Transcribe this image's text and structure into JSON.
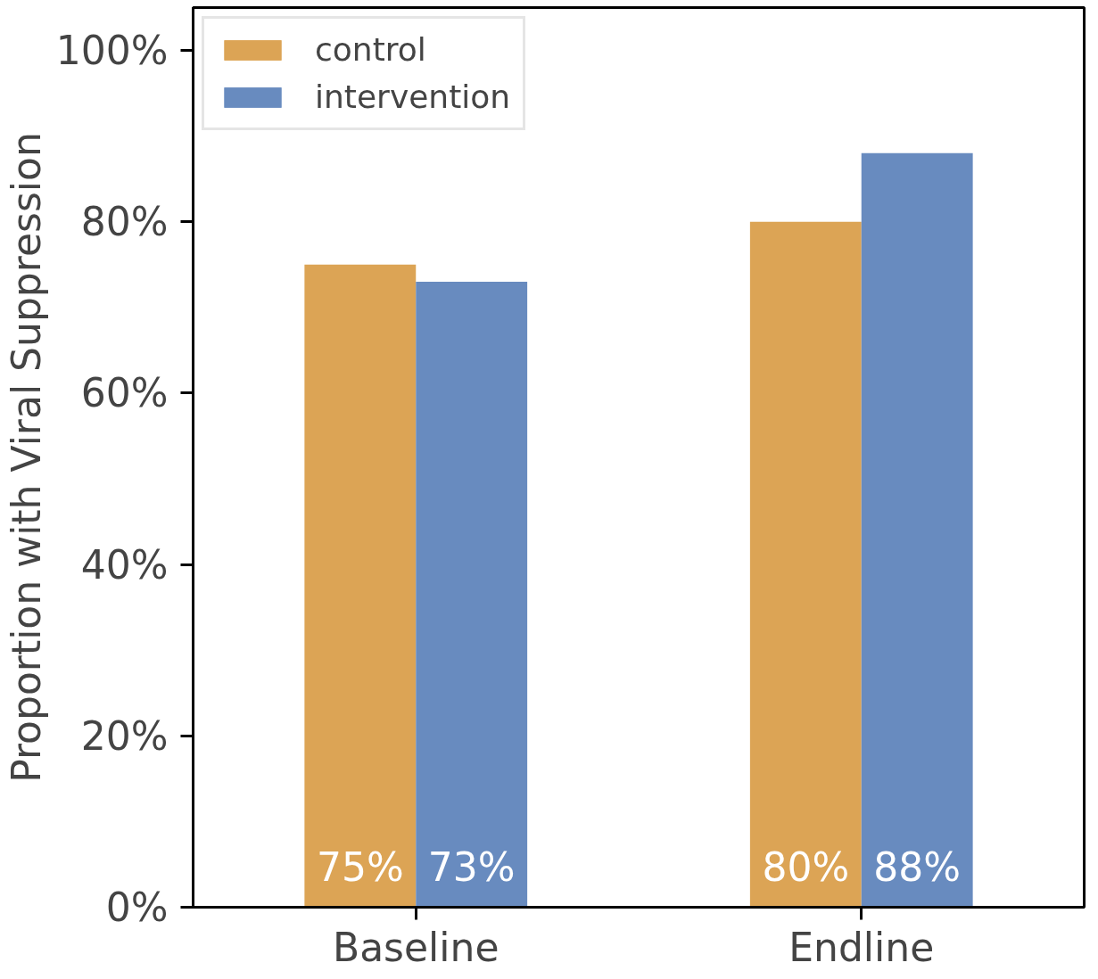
{
  "chart_data": {
    "type": "bar",
    "ylabel": "Proportion with Viral Suppression",
    "categories": [
      "Baseline",
      "Endline"
    ],
    "series": [
      {
        "name": "control",
        "color": "#dca455",
        "values": [
          75,
          80
        ]
      },
      {
        "name": "intervention",
        "color": "#688bbf",
        "values": [
          73,
          88
        ]
      }
    ],
    "ylim": [
      0,
      105
    ],
    "yticks": [
      {
        "value": 0,
        "label": "0%"
      },
      {
        "value": 20,
        "label": "20%"
      },
      {
        "value": 40,
        "label": "40%"
      },
      {
        "value": 60,
        "label": "60%"
      },
      {
        "value": 80,
        "label": "80%"
      },
      {
        "value": 100,
        "label": "100%"
      }
    ],
    "value_labels": [
      [
        "75%",
        "80%"
      ],
      [
        "73%",
        "88%"
      ]
    ],
    "legend": "top left",
    "grid": false
  }
}
